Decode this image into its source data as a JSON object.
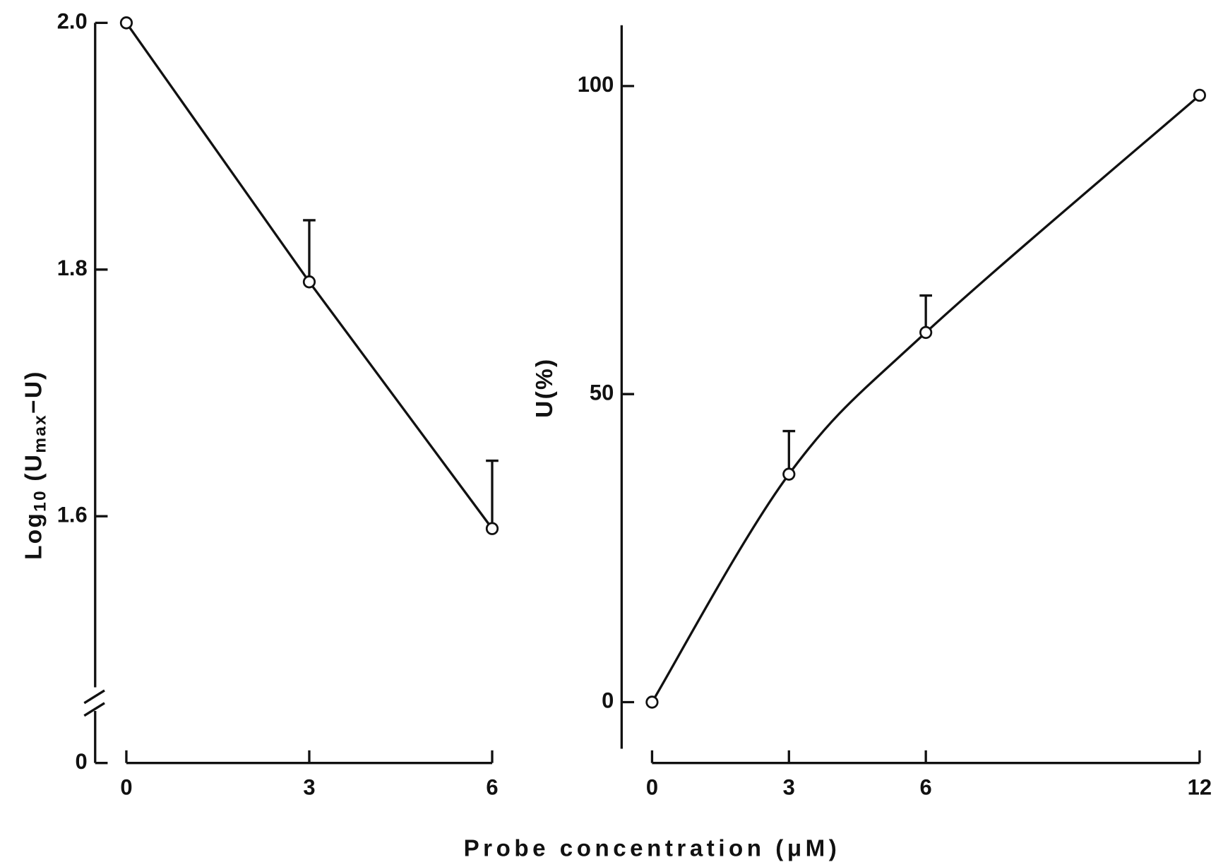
{
  "chart_data": [
    {
      "type": "line",
      "ylabel": [
        "Log",
        "10",
        " (U",
        "max",
        "−U)"
      ],
      "xlabel": "Probe concentration (μM)",
      "x": [
        0,
        3,
        6
      ],
      "values": [
        2.0,
        1.79,
        1.59
      ],
      "errors": [
        null,
        0.05,
        0.055
      ],
      "xlim": [
        0,
        6
      ],
      "xticks": [
        0,
        3,
        6
      ],
      "ylim": [
        1.4,
        2.0
      ],
      "yticks": [
        {
          "value": 0,
          "label": "0"
        },
        {
          "value": 1.6,
          "label": "1.6"
        },
        {
          "value": 1.8,
          "label": "1.8"
        },
        {
          "value": 2.0,
          "label": "2.0"
        }
      ],
      "y_break": true,
      "smooth": false,
      "color": "#111111"
    },
    {
      "type": "line",
      "ylabel": [
        "U(%)"
      ],
      "x": [
        0,
        3,
        6,
        12
      ],
      "values": [
        0,
        37,
        60,
        98.5
      ],
      "errors": [
        null,
        7,
        6,
        null
      ],
      "xlim": [
        0,
        12
      ],
      "xticks": [
        0,
        3,
        6,
        12
      ],
      "ylim": [
        -10,
        110
      ],
      "yticks": [
        0,
        50,
        100
      ],
      "y_break": false,
      "smooth": true,
      "color": "#111111"
    }
  ]
}
